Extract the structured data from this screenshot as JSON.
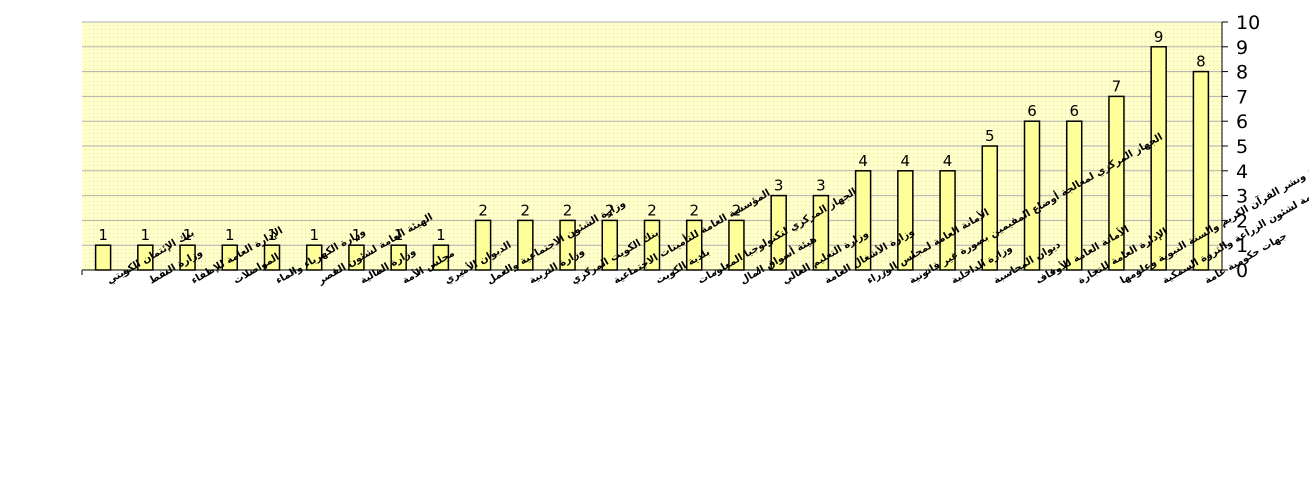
{
  "chart_data": {
    "type": "bar",
    "title": "",
    "xlabel": "",
    "ylabel": "",
    "ylim": [
      0,
      10
    ],
    "yticks": [
      0,
      1,
      2,
      3,
      4,
      5,
      6,
      7,
      8,
      9,
      10
    ],
    "y_axis_side": "right",
    "grid": true,
    "legend": "none",
    "colors": {
      "bar_fill": "#ffff99",
      "bar_stroke": "#000000",
      "plot_bg": "#ffffcc",
      "grid": "#b0b0b0"
    },
    "categories": [
      "بنك الإئتمان الكويتي",
      "وزارة النفط",
      "الإدارة العامة للإطفاء",
      "المواصلات",
      "وزارة الكهرباء والماء",
      "الهيئة العامة لشئون القصر",
      "وزارة المالية",
      "مجلس الأمة",
      "الديوان الأميري",
      "وزارة الشئون الاجتماعية والعمل",
      "وزارة التربية",
      "بنك الكويت المركزي",
      "المؤسسة العامة للتأمينات الاجتماعية",
      "بلدية الكويت",
      "الجهاز المركزي لتكنولوجيا المعلومات",
      "هيئة أسواق المال",
      "وزارة التعليم العالي",
      "وزارة الأشغال العامة",
      "الأمانة العامة لمجلس الوزراء",
      "الجهاز المركزي لمعالجة أوضاع المقيمين بصورة غير قانونية",
      "وزارة الداخلية",
      "ديوان المحاسبة",
      "الأمانة العامة للأوقاف",
      "الإدارة العامة للتجارة",
      "الهيئة العامة للعناية بطباعة ونشر القرآن الكريم والسنة النبوية وعلومها",
      "الهيئة العامة لشئون الزراعة والثروة السمكية",
      "جهات حكومية عامة"
    ],
    "values": [
      1,
      1,
      1,
      1,
      1,
      1,
      1,
      1,
      1,
      2,
      2,
      2,
      2,
      2,
      2,
      2,
      3,
      3,
      4,
      4,
      4,
      5,
      6,
      6,
      7,
      9,
      8
    ]
  }
}
